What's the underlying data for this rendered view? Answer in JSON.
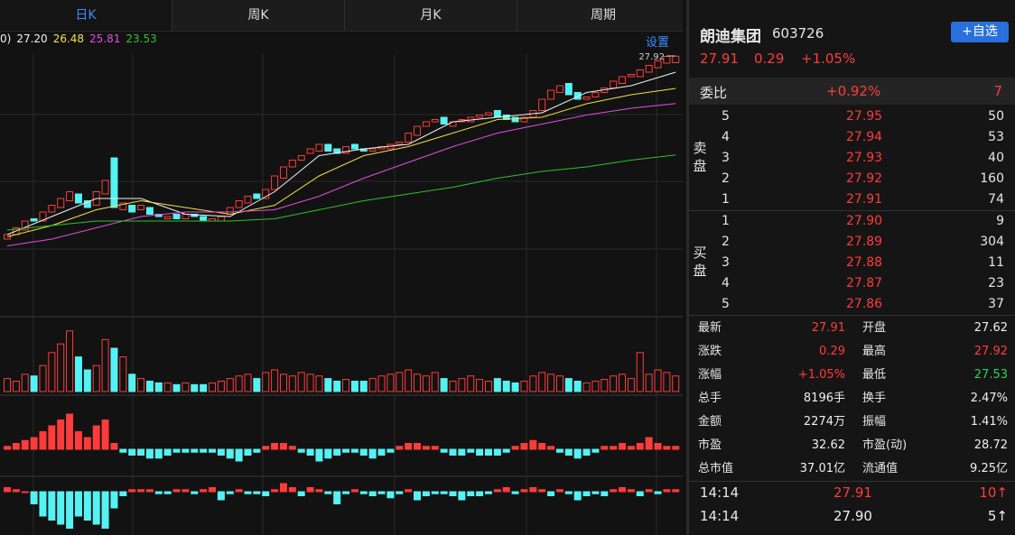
{
  "tabs": [
    "日K",
    "周K",
    "月K",
    "周期"
  ],
  "settings": "设置",
  "ma_prefix": "0)",
  "chart_data": [
    {
      "type": "candlestick",
      "ylim": [
        16.36,
        30.0
      ],
      "max_marker": 27.92,
      "open": [
        19.8,
        20.0,
        20.2,
        20.7,
        20.6,
        21.0,
        21.2,
        21.5,
        21.8,
        21.5,
        21.3,
        21.8,
        23.4,
        21.1,
        21.3,
        21.1,
        21.2,
        20.9,
        20.7,
        20.9,
        20.7,
        20.9,
        20.8,
        20.6,
        20.6,
        20.9,
        21.2,
        21.4,
        21.8,
        21.6,
        22.0,
        22.5,
        23.0,
        23.3,
        23.6,
        23.7,
        24.0,
        23.8,
        23.6,
        24.0,
        23.8,
        23.7,
        23.8,
        23.8,
        24.0,
        24.1,
        24.4,
        24.8,
        25.0,
        25.2,
        24.8,
        25.0,
        25.0,
        25.2,
        25.3,
        25.5,
        25.3,
        25.2,
        25.0,
        25.2,
        25.5,
        26.0,
        26.3,
        26.7,
        26.3,
        26.0,
        26.1,
        26.3,
        26.5,
        26.7,
        27.0,
        27.0,
        27.2,
        27.4,
        27.6,
        27.62
      ],
      "close": [
        20.0,
        20.3,
        20.6,
        20.6,
        21.0,
        21.3,
        21.6,
        21.9,
        21.4,
        21.2,
        21.9,
        22.4,
        21.2,
        21.4,
        21.0,
        21.3,
        20.9,
        20.8,
        20.8,
        20.7,
        20.9,
        20.8,
        20.6,
        20.7,
        20.8,
        21.2,
        21.5,
        21.7,
        21.6,
        22.0,
        22.6,
        23.0,
        23.3,
        23.5,
        23.8,
        24.0,
        23.7,
        23.6,
        23.9,
        23.8,
        23.7,
        23.8,
        23.9,
        24.0,
        24.1,
        24.5,
        24.8,
        25.0,
        25.1,
        24.9,
        25.0,
        25.1,
        25.2,
        25.3,
        25.4,
        25.2,
        25.1,
        25.0,
        25.2,
        25.5,
        26.0,
        26.4,
        26.6,
        26.2,
        26.0,
        26.1,
        26.3,
        26.5,
        26.8,
        27.0,
        27.1,
        27.3,
        27.5,
        27.7,
        27.9,
        27.91
      ],
      "ma_x": [
        0,
        5,
        10,
        15,
        20,
        25,
        30,
        35,
        40,
        45,
        50,
        55,
        60,
        65,
        70,
        75
      ],
      "ma": [
        {
          "label": "27.20",
          "color": "#f2f2f2",
          "values": [
            20.0,
            20.8,
            21.6,
            21.6,
            20.9,
            20.8,
            21.9,
            23.5,
            23.8,
            24.0,
            25.0,
            25.2,
            25.4,
            26.3,
            26.6,
            27.2
          ]
        },
        {
          "label": "26.48",
          "color": "#f0e040",
          "values": [
            19.9,
            20.4,
            21.1,
            21.5,
            21.2,
            20.9,
            21.3,
            22.6,
            23.5,
            23.9,
            24.5,
            25.1,
            25.2,
            25.8,
            26.2,
            26.48
          ]
        },
        {
          "label": "25.81",
          "color": "#e050e0",
          "values": [
            19.5,
            19.8,
            20.3,
            20.8,
            21.0,
            21.0,
            21.1,
            21.7,
            22.5,
            23.2,
            23.9,
            24.5,
            24.9,
            25.3,
            25.6,
            25.81
          ]
        },
        {
          "label": "23.53",
          "color": "#30c030",
          "values": [
            20.2,
            20.4,
            20.6,
            20.6,
            20.6,
            20.6,
            20.7,
            21.1,
            21.5,
            21.8,
            22.1,
            22.5,
            22.8,
            23.0,
            23.3,
            23.53
          ]
        }
      ]
    },
    {
      "type": "bar",
      "ylim": [
        0,
        75
      ],
      "values": [
        15,
        12,
        20,
        18,
        30,
        45,
        55,
        70,
        40,
        25,
        30,
        60,
        50,
        40,
        20,
        15,
        12,
        10,
        10,
        8,
        10,
        8,
        8,
        10,
        12,
        15,
        18,
        20,
        15,
        22,
        25,
        20,
        18,
        22,
        20,
        18,
        15,
        12,
        14,
        12,
        12,
        15,
        18,
        20,
        22,
        25,
        20,
        18,
        22,
        15,
        12,
        15,
        18,
        14,
        12,
        15,
        12,
        10,
        12,
        18,
        22,
        20,
        18,
        15,
        12,
        10,
        12,
        14,
        18,
        20,
        15,
        45,
        20,
        25,
        22,
        18
      ]
    },
    {
      "type": "bar",
      "ylim": [
        -0.8,
        0.8
      ],
      "values": [
        0.05,
        0.1,
        0.15,
        0.2,
        0.3,
        0.4,
        0.5,
        0.6,
        0.3,
        0.2,
        0.4,
        0.5,
        0.1,
        -0.05,
        -0.1,
        -0.1,
        -0.15,
        -0.15,
        -0.1,
        -0.05,
        -0.05,
        -0.05,
        -0.05,
        -0.05,
        -0.1,
        -0.15,
        -0.2,
        -0.1,
        -0.05,
        0.05,
        0.1,
        0.1,
        0.05,
        -0.05,
        -0.1,
        -0.2,
        -0.15,
        -0.1,
        -0.05,
        -0.05,
        -0.1,
        -0.15,
        -0.1,
        -0.05,
        0.05,
        0.1,
        0.1,
        0.05,
        0.05,
        -0.05,
        -0.1,
        -0.1,
        -0.05,
        -0.1,
        -0.1,
        -0.1,
        -0.05,
        0.05,
        0.1,
        0.15,
        0.1,
        0.05,
        -0.05,
        -0.1,
        -0.15,
        -0.1,
        -0.05,
        0.05,
        0.05,
        0.1,
        0.05,
        0.1,
        0.2,
        0.1,
        0.05,
        0.05
      ]
    },
    {
      "type": "bar",
      "ylim": [
        -1,
        1
      ],
      "values": [
        0.1,
        0.05,
        0,
        -0.3,
        -0.6,
        -0.7,
        -0.8,
        -0.9,
        -0.6,
        -0.7,
        -0.8,
        -0.9,
        -0.4,
        -0.1,
        0.05,
        0.05,
        0.05,
        -0.05,
        -0.05,
        0.05,
        0.05,
        -0.05,
        0.05,
        0.1,
        -0.2,
        -0.05,
        0.05,
        -0.05,
        -0.05,
        -0.1,
        0.05,
        0.2,
        0.1,
        -0.1,
        0.1,
        0.05,
        -0.05,
        -0.3,
        -0.05,
        0.05,
        -0.05,
        -0.1,
        -0.05,
        -0.15,
        -0.05,
        0.05,
        -0.2,
        -0.1,
        -0.05,
        -0.05,
        -0.1,
        -0.2,
        -0.1,
        -0.1,
        -0.05,
        0.05,
        0.1,
        -0.05,
        0.05,
        0.1,
        0.05,
        -0.1,
        0.05,
        -0.05,
        -0.2,
        -0.1,
        -0.05,
        -0.1,
        0.05,
        0.1,
        0.05,
        -0.1,
        0.05,
        -0.05,
        0.05,
        0.05
      ]
    }
  ],
  "quote": {
    "name": "朗迪集团",
    "code": "603726",
    "add": "+自选",
    "price": "27.91",
    "change": "0.29",
    "pct": "+1.05%"
  },
  "weibi": {
    "label": "委比",
    "pct": "+0.92%",
    "diff": "7"
  },
  "sell": {
    "label": "卖盘",
    "rows": [
      [
        "5",
        "27.95",
        "50"
      ],
      [
        "4",
        "27.94",
        "53"
      ],
      [
        "3",
        "27.93",
        "40"
      ],
      [
        "2",
        "27.92",
        "160"
      ],
      [
        "1",
        "27.91",
        "74"
      ]
    ]
  },
  "buy": {
    "label": "买盘",
    "rows": [
      [
        "1",
        "27.90",
        "9"
      ],
      [
        "2",
        "27.89",
        "304"
      ],
      [
        "3",
        "27.88",
        "11"
      ],
      [
        "4",
        "27.87",
        "23"
      ],
      [
        "5",
        "27.86",
        "37"
      ]
    ]
  },
  "stats": [
    [
      "最新",
      "27.91",
      "开盘",
      "27.62"
    ],
    [
      "涨跌",
      "0.29",
      "最高",
      "27.92"
    ],
    [
      "涨幅",
      "+1.05%",
      "最低",
      "27.53"
    ],
    [
      "总手",
      "8196手",
      "换手",
      "2.47%"
    ],
    [
      "金额",
      "2274万",
      "振幅",
      "1.41%"
    ],
    [
      "市盈",
      "32.62",
      "市盈(动)",
      "28.72"
    ],
    [
      "总市值",
      "37.01亿",
      "流通值",
      "9.25亿"
    ]
  ],
  "ticks": [
    [
      "14:14",
      "27.91",
      "10↑"
    ],
    [
      "14:14",
      "27.90",
      "5↑"
    ]
  ]
}
